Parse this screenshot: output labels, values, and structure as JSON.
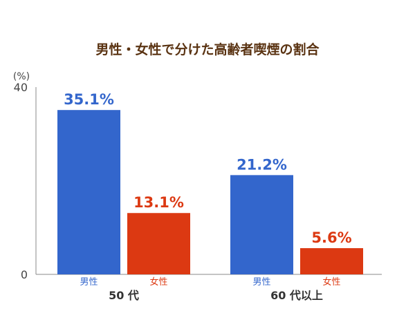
{
  "chart_data": {
    "type": "bar",
    "title": "男性・女性で分けた高齢者喫煙の割合",
    "ylabel": "(%)",
    "ylim": [
      0,
      40
    ],
    "yticks": [
      0,
      40
    ],
    "grid": false,
    "categories": [
      "50 代",
      "60 代以上"
    ],
    "series": [
      {
        "name": "男性",
        "color": "#3366cc",
        "values": [
          35.1,
          21.2
        ],
        "labels": [
          "35.1%",
          "21.2%"
        ]
      },
      {
        "name": "女性",
        "color": "#dc3912",
        "values": [
          13.1,
          5.6
        ],
        "labels": [
          "13.1%",
          "5.6%"
        ]
      }
    ]
  }
}
